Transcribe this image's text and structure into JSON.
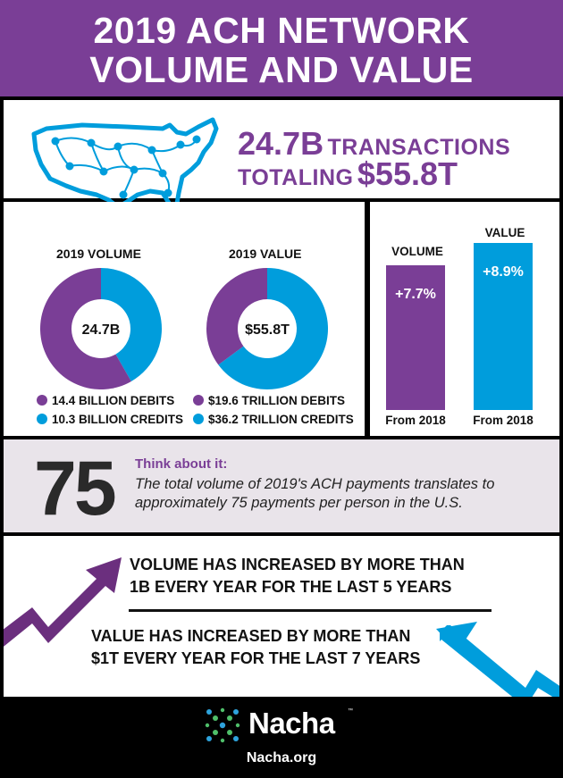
{
  "header": {
    "line1": "2019 ACH NETWORK",
    "line2": "VOLUME AND VALUE"
  },
  "summary": {
    "transactions_value": "24.7B",
    "transactions_label": "TRANSACTIONS",
    "totaling_label": "TOTALING",
    "total_value": "$55.8T",
    "map_icon": "us-network-map-icon"
  },
  "colors": {
    "purple": "#7a3e96",
    "blue": "#009ddc",
    "black": "#000000",
    "think_bg": "#e9e4ea"
  },
  "chart_data": [
    {
      "type": "pie",
      "title": "2019 VOLUME",
      "center_label": "24.7B",
      "categories": [
        "14.4 BILLION DEBITS",
        "10.3 BILLION CREDITS"
      ],
      "values": [
        14.4,
        10.3
      ],
      "unit": "billion",
      "colors": [
        "#7a3e96",
        "#009ddc"
      ]
    },
    {
      "type": "pie",
      "title": "2019 VALUE",
      "center_label": "$55.8T",
      "categories": [
        "$19.6 TRILLION DEBITS",
        "$36.2 TRILLION CREDITS"
      ],
      "values": [
        19.6,
        36.2
      ],
      "unit": "trillion",
      "colors": [
        "#7a3e96",
        "#009ddc"
      ]
    },
    {
      "type": "bar",
      "categories": [
        "VOLUME",
        "VALUE"
      ],
      "values": [
        7.7,
        8.9
      ],
      "data_labels": [
        "+7.7%",
        "+8.9%"
      ],
      "footer_labels": [
        "From 2018",
        "From 2018"
      ],
      "colors": [
        "#7a3e96",
        "#009ddc"
      ]
    }
  ],
  "think": {
    "number": "75",
    "heading": "Think about it:",
    "body": "The total volume of 2019's ACH payments translates to approximately 75 payments per person in the U.S."
  },
  "trends": {
    "volume_line1": "VOLUME HAS INCREASED BY MORE THAN",
    "volume_line2": "1B EVERY YEAR FOR THE LAST 5 YEARS",
    "value_line1": "VALUE HAS INCREASED BY MORE THAN",
    "value_line2": "$1T EVERY YEAR FOR THE LAST 7 YEARS"
  },
  "footer": {
    "brand": "Nacha",
    "trademark": "™",
    "site": "Nacha.org"
  }
}
